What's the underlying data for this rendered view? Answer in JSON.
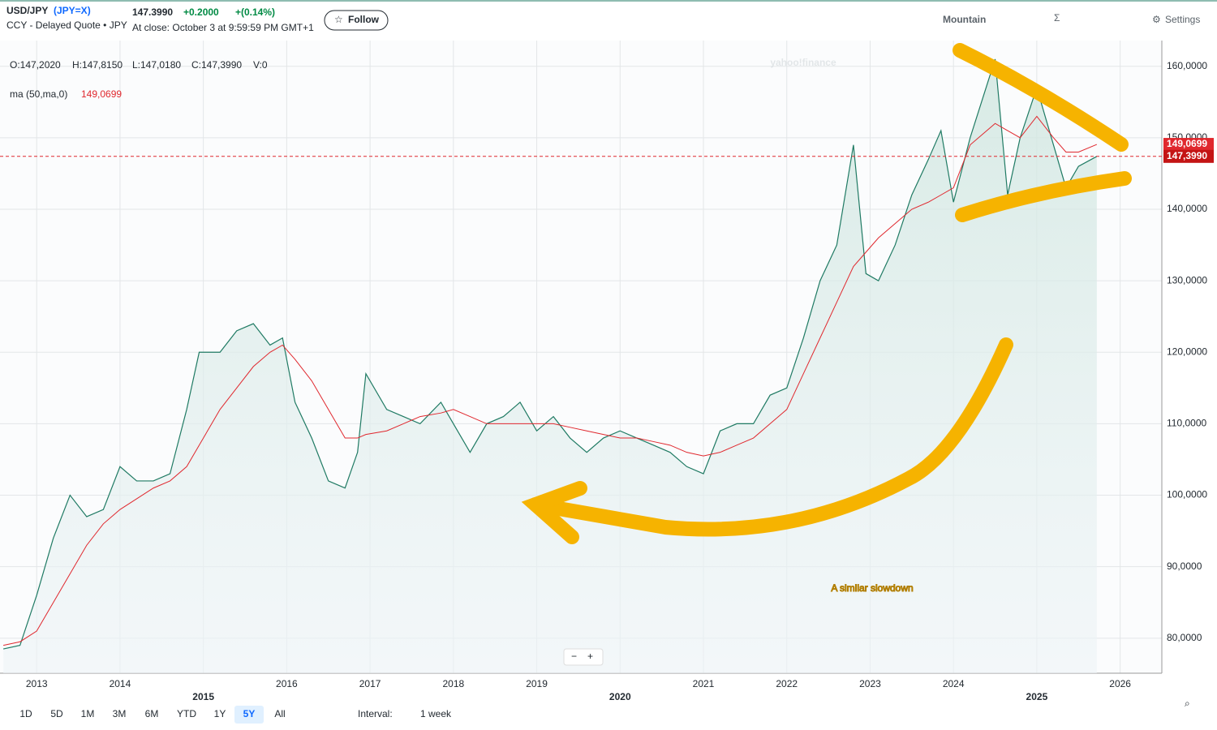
{
  "header": {
    "ticker": "(JPY=X)",
    "sub": "CCY - Delayed Quote • JPY",
    "price": "147.3990",
    "change": "+0.2000",
    "pct": "+(0.14%)",
    "close": "At close: October 3 at 9:59:59 PM GMT+1",
    "follow": "Follow",
    "tz": "Mountain",
    "settings": "Settings"
  },
  "chart_data": {
    "type": "line",
    "watermark": "yahoo!finance",
    "ohlc": [
      "O:147,2020",
      "H:147,8150",
      "L:147,0180",
      "C:147,3990",
      "V:0"
    ],
    "annotation": "A similar slowdown",
    "x": [
      2012.6,
      2012.8,
      2013.0,
      2013.2,
      2013.4,
      2013.6,
      2013.8,
      2014.0,
      2014.2,
      2014.4,
      2014.6,
      2014.8,
      2014.95,
      2015.2,
      2015.4,
      2015.6,
      2015.8,
      2015.95,
      2016.1,
      2016.3,
      2016.5,
      2016.7,
      2016.85,
      2016.95,
      2017.2,
      2017.4,
      2017.6,
      2017.85,
      2018.0,
      2018.2,
      2018.4,
      2018.6,
      2018.8,
      2019.0,
      2019.2,
      2019.4,
      2019.6,
      2019.8,
      2020.0,
      2020.2,
      2020.4,
      2020.6,
      2020.8,
      2021.0,
      2021.2,
      2021.4,
      2021.6,
      2021.8,
      2022.0,
      2022.2,
      2022.4,
      2022.6,
      2022.8,
      2022.95,
      2023.1,
      2023.3,
      2023.5,
      2023.7,
      2023.85,
      2024.0,
      2024.2,
      2024.5,
      2024.65,
      2024.8,
      2025.0,
      2025.2,
      2025.35,
      2025.5,
      2025.72
    ],
    "series": [
      {
        "name": "USD/JPY",
        "color": "#1f7a63",
        "values": [
          78.5,
          79,
          86,
          94,
          100,
          97,
          98,
          104,
          102,
          102,
          103,
          112,
          120,
          120,
          123,
          124,
          121,
          122,
          113,
          108,
          102,
          101,
          106,
          117,
          112,
          111,
          110,
          113,
          110,
          106,
          110,
          111,
          113,
          109,
          111,
          108,
          106,
          108,
          109,
          108,
          107,
          106,
          104,
          103,
          109,
          110,
          110,
          114,
          115,
          122,
          130,
          135,
          149,
          131,
          130,
          135,
          142,
          147,
          151,
          141,
          150,
          161,
          142,
          150,
          157,
          149,
          143,
          146,
          147.399
        ]
      },
      {
        "name": "ma (50,ma,0)",
        "color": "#e0282e",
        "values": [
          79,
          79.5,
          81,
          85,
          89,
          93,
          96,
          98,
          99.5,
          101,
          102,
          104,
          107,
          112,
          115,
          118,
          120,
          121,
          119,
          116,
          112,
          108,
          108,
          108.5,
          109,
          110,
          111,
          111.5,
          112,
          111,
          110,
          110,
          110,
          110,
          110,
          109.5,
          109,
          108.5,
          108,
          108,
          107.5,
          107,
          106,
          105.5,
          106,
          107,
          108,
          110,
          112,
          117,
          122,
          127,
          132,
          134,
          136,
          138,
          140,
          141,
          142,
          143,
          149,
          152,
          151,
          150,
          153,
          150,
          148,
          148,
          149.0699
        ]
      }
    ],
    "xlim": [
      2012.56,
      2026.5
    ],
    "xticks": [
      2013,
      2014,
      2015,
      2016,
      2017,
      2018,
      2019,
      2020,
      2021,
      2022,
      2023,
      2024,
      2025,
      2026
    ],
    "ylim": [
      75.1,
      163.6
    ],
    "yticks": [
      {
        "value": 80,
        "label": "80,0000"
      },
      {
        "value": 90,
        "label": "90,0000"
      },
      {
        "value": 100,
        "label": "100,0000"
      },
      {
        "value": 110,
        "label": "110,0000"
      },
      {
        "value": 120,
        "label": "120,0000"
      },
      {
        "value": 130,
        "label": "130,0000"
      },
      {
        "value": 140,
        "label": "140,0000"
      },
      {
        "value": 150,
        "label": "150,0000"
      },
      {
        "value": 160,
        "label": "160,0000"
      }
    ],
    "grid": true,
    "last": {
      "value": 147.399,
      "label": "147,3990"
    },
    "ma_last": {
      "value": 149.0699,
      "label": "149,0699"
    }
  },
  "toolbar": {
    "ranges": [
      "1D",
      "5D",
      "1M",
      "3M",
      "6M",
      "YTD",
      "1Y",
      "5Y",
      "All"
    ],
    "active_range": 7,
    "interval_label": "Interval:",
    "interval": "1 week"
  }
}
